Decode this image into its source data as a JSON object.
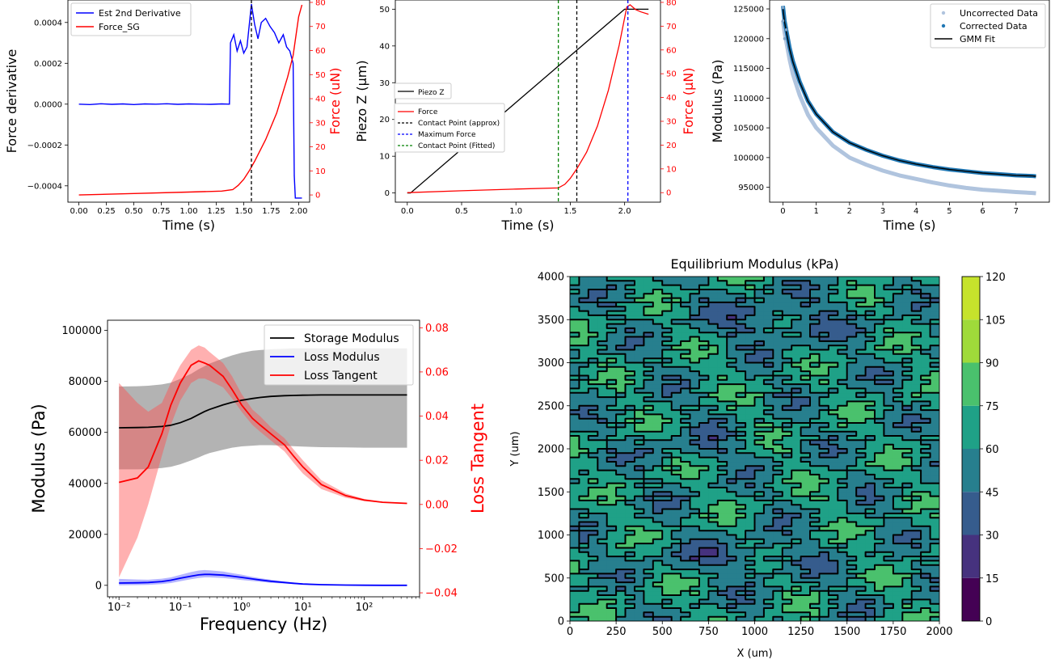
{
  "chart_data": [
    {
      "type": "line",
      "xlabel": "Time (s)",
      "ylabel": "Force derivative",
      "ylabel_right": "Force (uN)",
      "xlim": [
        -0.1,
        2.1
      ],
      "ylim": [
        -0.00048,
        0.00051
      ],
      "ylim_right": [
        -3,
        81
      ],
      "x_ticks": [
        "0.00",
        "0.25",
        "0.50",
        "0.75",
        "1.00",
        "1.25",
        "1.50",
        "1.75",
        "2.00"
      ],
      "y_ticks": [
        "0.0004",
        "0.0002",
        "0.0000",
        "−0.0002",
        "−0.0004"
      ],
      "y_tick_values": [
        0.0004,
        0.0002,
        0,
        -0.0002,
        -0.0004
      ],
      "y_ticks_right": [
        "0",
        "10",
        "20",
        "30",
        "40",
        "50",
        "60",
        "70",
        "80"
      ],
      "legend": [
        "Est 2nd Derivative",
        "Force_SG"
      ],
      "legend_position": "top-left",
      "vline": {
        "x": 1.57,
        "style": "dashed",
        "color": "#000000"
      },
      "series": [
        {
          "name": "Est 2nd Derivative",
          "axis": "left",
          "color": "#0000ff",
          "x": [
            0,
            0.1,
            0.2,
            0.3,
            0.4,
            0.5,
            0.6,
            0.7,
            0.8,
            0.9,
            1.0,
            1.1,
            1.2,
            1.3,
            1.37,
            1.38,
            1.41,
            1.44,
            1.47,
            1.5,
            1.53,
            1.57,
            1.6,
            1.63,
            1.66,
            1.7,
            1.74,
            1.78,
            1.82,
            1.86,
            1.89,
            1.92,
            1.95,
            1.96,
            1.97,
            2.0,
            2.03
          ],
          "y": [
            0,
            -2e-06,
            2e-06,
            -1e-06,
            1e-06,
            -2e-06,
            1e-06,
            0,
            2e-06,
            -1e-06,
            1e-06,
            0,
            -1e-06,
            1e-06,
            0,
            0.0003,
            0.00034,
            0.00026,
            0.00031,
            0.00025,
            0.00028,
            0.00049,
            0.00039,
            0.00032,
            0.0004,
            0.00042,
            0.00038,
            0.00035,
            0.0003,
            0.00034,
            0.00028,
            0.00026,
            0.0002,
            -0.00035,
            -0.00046,
            -0.00046,
            -0.00046
          ]
        },
        {
          "name": "Force_SG",
          "axis": "right",
          "color": "#ff0000",
          "x": [
            0,
            0.5,
            1.0,
            1.3,
            1.4,
            1.45,
            1.5,
            1.55,
            1.6,
            1.7,
            1.8,
            1.9,
            1.95,
            2.0,
            2.03
          ],
          "y": [
            0,
            0.6,
            1.2,
            1.6,
            2.2,
            4.0,
            6.5,
            10.0,
            14.0,
            23.0,
            34.0,
            49.0,
            58.0,
            74.0,
            79.0
          ]
        }
      ]
    },
    {
      "type": "line",
      "xlabel": "Time (s)",
      "ylabel": "Piezo Z (μm)",
      "ylabel_right": "Force (μN)",
      "xlim": [
        -0.11,
        2.33
      ],
      "ylim": [
        -2.5,
        52.5
      ],
      "ylim_right": [
        -4,
        81
      ],
      "x_ticks": [
        "0.0",
        "0.5",
        "1.0",
        "1.5",
        "2.0"
      ],
      "x_tick_values": [
        0,
        0.5,
        1.0,
        1.5,
        2.0
      ],
      "y_ticks": [
        "0",
        "10",
        "20",
        "30",
        "40",
        "50"
      ],
      "y_ticks_right": [
        "0",
        "10",
        "20",
        "30",
        "40",
        "50",
        "60",
        "70",
        "80"
      ],
      "legend_top": [
        "Piezo Z"
      ],
      "legend_bottom": [
        "Force",
        "Contact Point (approx)",
        "Maximum Force",
        "Contact Point (Fitted)"
      ],
      "legend_position": "center-left",
      "vlines": [
        {
          "x": 1.39,
          "color": "#008000",
          "label": "Contact Point (Fitted)"
        },
        {
          "x": 1.56,
          "color": "#000000",
          "label": "Contact Point (approx)"
        },
        {
          "x": 2.03,
          "color": "#0000ff",
          "label": "Maximum Force"
        }
      ],
      "series": [
        {
          "name": "Piezo Z",
          "axis": "left",
          "color": "#000000",
          "x": [
            0,
            0.03,
            2.0,
            2.22
          ],
          "y": [
            0,
            0,
            50,
            50
          ]
        },
        {
          "name": "Force",
          "axis": "right",
          "color": "#ff0000",
          "x": [
            0,
            0.5,
            1.0,
            1.39,
            1.45,
            1.5,
            1.56,
            1.65,
            1.75,
            1.85,
            1.95,
            2.02,
            2.05,
            2.1,
            2.15,
            2.22
          ],
          "y": [
            0,
            0.8,
            1.5,
            2.0,
            3.5,
            6.0,
            10.0,
            17.0,
            28.0,
            43.0,
            62.0,
            78.0,
            79.0,
            77.0,
            76.0,
            75.0
          ]
        }
      ]
    },
    {
      "type": "scatter",
      "xlabel": "Time (s)",
      "ylabel": "Modulus (Pa)",
      "xlim": [
        -0.4,
        8.0
      ],
      "ylim": [
        92500,
        126500
      ],
      "x_ticks": [
        "0",
        "1",
        "2",
        "3",
        "4",
        "5",
        "6",
        "7"
      ],
      "y_ticks": [
        "125000",
        "120000",
        "115000",
        "110000",
        "105000",
        "100000",
        "95000"
      ],
      "legend": [
        "Uncorrected Data",
        "Corrected Data",
        "GMM Fit"
      ],
      "legend_position": "top-right",
      "series": [
        {
          "name": "Uncorrected Data",
          "color": "#b0c4de",
          "x": [
            0,
            0.05,
            0.1,
            0.2,
            0.3,
            0.5,
            0.75,
            1.0,
            1.5,
            2.0,
            2.5,
            3.0,
            3.5,
            4.0,
            4.5,
            5.0,
            5.5,
            6.0,
            6.5,
            7.0,
            7.5,
            7.6
          ],
          "y": [
            123000,
            121000,
            119500,
            116500,
            114000,
            110500,
            107200,
            105000,
            102000,
            100000,
            98800,
            97800,
            97000,
            96400,
            95800,
            95300,
            94900,
            94600,
            94400,
            94200,
            94050,
            94000
          ]
        },
        {
          "name": "Corrected Data",
          "color": "#1f77b4",
          "x": [
            0,
            0.05,
            0.1,
            0.2,
            0.3,
            0.5,
            0.75,
            1.0,
            1.5,
            2.0,
            2.5,
            3.0,
            3.5,
            4.0,
            4.5,
            5.0,
            5.5,
            6.0,
            6.5,
            7.0,
            7.5,
            7.6
          ],
          "y": [
            125500,
            123000,
            121500,
            118500,
            116200,
            112800,
            109500,
            107300,
            104300,
            102500,
            101300,
            100300,
            99500,
            98900,
            98400,
            98000,
            97700,
            97400,
            97200,
            97000,
            96900,
            96850
          ]
        },
        {
          "name": "GMM Fit",
          "color": "#000000",
          "x": [
            0,
            0.05,
            0.1,
            0.2,
            0.3,
            0.5,
            0.75,
            1.0,
            1.5,
            2.0,
            2.5,
            3.0,
            3.5,
            4.0,
            4.5,
            5.0,
            5.5,
            6.0,
            6.5,
            7.0,
            7.5,
            7.6
          ],
          "y": [
            125000,
            122800,
            121200,
            118300,
            116100,
            112700,
            109500,
            107300,
            104300,
            102500,
            101300,
            100300,
            99500,
            98900,
            98400,
            98000,
            97700,
            97400,
            97200,
            97000,
            96900,
            96850
          ]
        }
      ]
    },
    {
      "type": "line",
      "xscale": "log",
      "xlabel": "Frequency (Hz)",
      "ylabel": "Modulus (Pa)",
      "ylabel_right": "Loss Tangent",
      "xlim": [
        0.0065,
        800
      ],
      "ylim": [
        -4500,
        104000
      ],
      "ylim_right": [
        -0.0418,
        0.0834
      ],
      "x_ticks": [
        "10⁻²",
        "10⁻¹",
        "10⁰",
        "10¹",
        "10²"
      ],
      "x_tick_values": [
        0.01,
        0.1,
        1,
        10,
        100
      ],
      "y_ticks": [
        "0",
        "20000",
        "40000",
        "60000",
        "80000",
        "100000"
      ],
      "y_ticks_right": [
        "−0.04",
        "−0.02",
        "0.00",
        "0.02",
        "0.04",
        "0.06",
        "0.08"
      ],
      "y_tick_values_right": [
        -0.04,
        -0.02,
        0,
        0.02,
        0.04,
        0.06,
        0.08
      ],
      "legend": [
        "Storage Modulus",
        "Loss Modulus",
        "Loss Tangent"
      ],
      "legend_position": "top-right",
      "freq": [
        0.01,
        0.02,
        0.03,
        0.05,
        0.07,
        0.1,
        0.15,
        0.2,
        0.25,
        0.3,
        0.5,
        0.7,
        1,
        1.5,
        2,
        3,
        5,
        7,
        10,
        20,
        50,
        100,
        200,
        500
      ],
      "series": [
        {
          "name": "Storage Modulus",
          "axis": "left",
          "color": "#000000",
          "values": [
            61800,
            61900,
            62000,
            62300,
            62800,
            63800,
            65500,
            67000,
            68200,
            69000,
            70800,
            71800,
            72600,
            73300,
            73700,
            74100,
            74400,
            74500,
            74600,
            74700,
            74700,
            74700,
            74700,
            74700
          ],
          "band_low": [
            45500,
            45500,
            45600,
            46000,
            46500,
            47500,
            49000,
            50200,
            51200,
            51900,
            53200,
            54000,
            54500,
            54800,
            55000,
            55000,
            54800,
            54600,
            54400,
            54200,
            54100,
            54000,
            54000,
            54000
          ],
          "band_high": [
            78000,
            78100,
            78300,
            78800,
            79500,
            81000,
            83000,
            84800,
            86000,
            87000,
            89000,
            90200,
            91200,
            92000,
            92300,
            92600,
            92800,
            93000,
            93000,
            93000,
            93000,
            93000,
            93000,
            93000
          ]
        },
        {
          "name": "Loss Modulus",
          "axis": "left",
          "color": "#0000ff",
          "values": [
            900,
            1000,
            1100,
            1500,
            2000,
            2800,
            3600,
            4100,
            4300,
            4300,
            4000,
            3600,
            3100,
            2500,
            2100,
            1600,
            1100,
            800,
            500,
            250,
            100,
            50,
            20,
            0
          ],
          "band_low": [
            0,
            100,
            200,
            500,
            900,
            1600,
            2400,
            2900,
            3100,
            3100,
            2900,
            2500,
            2100,
            1700,
            1400,
            1000,
            700,
            500,
            300,
            150,
            50,
            20,
            10,
            0
          ],
          "band_high": [
            2500,
            2300,
            2200,
            2600,
            3100,
            4100,
            5200,
            5800,
            6000,
            5900,
            5400,
            4800,
            4200,
            3300,
            2800,
            2200,
            1500,
            1100,
            700,
            350,
            150,
            80,
            30,
            0
          ]
        },
        {
          "name": "Loss Tangent",
          "axis": "right",
          "color": "#ff0000",
          "values": [
            0.01,
            0.012,
            0.017,
            0.032,
            0.045,
            0.055,
            0.063,
            0.065,
            0.064,
            0.063,
            0.058,
            0.052,
            0.045,
            0.039,
            0.036,
            0.032,
            0.027,
            0.022,
            0.017,
            0.009,
            0.004,
            0.002,
            0.001,
            0.0005
          ],
          "band_low": [
            -0.033,
            -0.015,
            0.0,
            0.022,
            0.036,
            0.047,
            0.055,
            0.057,
            0.057,
            0.056,
            0.053,
            0.048,
            0.042,
            0.036,
            0.033,
            0.029,
            0.024,
            0.019,
            0.014,
            0.007,
            0.003,
            0.0015,
            0.0008,
            0.0004
          ],
          "band_high": [
            0.055,
            0.046,
            0.042,
            0.046,
            0.055,
            0.063,
            0.07,
            0.072,
            0.071,
            0.069,
            0.064,
            0.058,
            0.05,
            0.043,
            0.04,
            0.035,
            0.03,
            0.025,
            0.02,
            0.011,
            0.005,
            0.0025,
            0.0012,
            0.0006
          ]
        }
      ]
    },
    {
      "type": "heatmap",
      "title": "Equilibrium Modulus (kPa)",
      "xlabel": "X (um)",
      "ylabel": "Y (um)",
      "xlim": [
        0,
        2000
      ],
      "ylim": [
        0,
        4000
      ],
      "x_ticks": [
        "0",
        "250",
        "500",
        "750",
        "1000",
        "1250",
        "1500",
        "1750",
        "2000"
      ],
      "y_ticks": [
        "0",
        "500",
        "1000",
        "1500",
        "2000",
        "2500",
        "3000",
        "3500",
        "4000"
      ],
      "colorbar_ticks": [
        "0",
        "15",
        "30",
        "45",
        "60",
        "75",
        "90",
        "105",
        "120"
      ],
      "colorbar_levels": [
        0,
        15,
        30,
        45,
        60,
        75,
        90,
        105,
        120
      ],
      "colorbar_colors": [
        "#440154",
        "#46327e",
        "#365c8d",
        "#277f8e",
        "#1fa187",
        "#4ac16d",
        "#9fda3a",
        "#c6e32c",
        "#fde725"
      ],
      "cell_size_um": 50,
      "value_range": [
        15,
        90
      ]
    }
  ]
}
